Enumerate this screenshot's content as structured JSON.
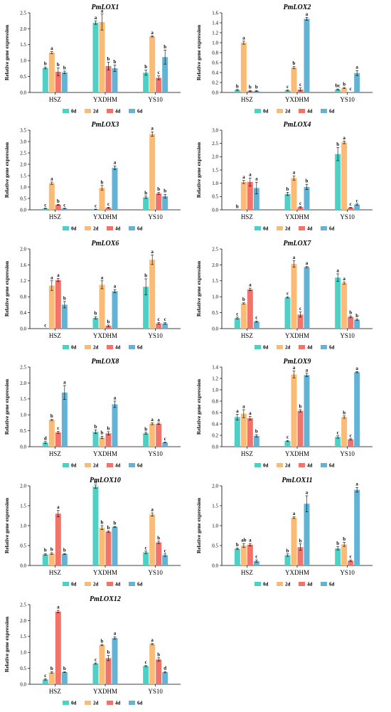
{
  "colors": {
    "0d": "#4fd0c6",
    "2d": "#f9bb76",
    "4d": "#f2736a",
    "6d": "#63b3d6"
  },
  "chart_data": [
    {
      "type": "bar",
      "title": "PmLOX1",
      "ylabel": "Relative gene expression",
      "ylim": [
        0,
        2.5
      ],
      "yticks": [
        0,
        0.5,
        1,
        1.5,
        2,
        2.5
      ],
      "categories": [
        "HSZ",
        "YXDHM",
        "YS10"
      ],
      "series": [
        {
          "name": "0d",
          "values": [
            0.77,
            2.19,
            0.62
          ],
          "errors": [
            0.03,
            0.05,
            0.08
          ],
          "letters": [
            "b",
            "a",
            "b"
          ]
        },
        {
          "name": "2d",
          "values": [
            1.25,
            2.21,
            1.76
          ],
          "errors": [
            0.03,
            0.25,
            0.02
          ],
          "letters": [
            "a",
            "a",
            "a"
          ]
        },
        {
          "name": "4d",
          "values": [
            0.65,
            0.83,
            0.46
          ],
          "errors": [
            0.12,
            0.12,
            0.06
          ],
          "letters": [
            "b",
            "b",
            "c"
          ]
        },
        {
          "name": "6d",
          "values": [
            0.63,
            0.76,
            1.11
          ],
          "errors": [
            0.04,
            0.1,
            0.22
          ],
          "letters": [
            "b",
            "b",
            "b"
          ]
        }
      ]
    },
    {
      "type": "bar",
      "title": "PmLOX2",
      "ylabel": "Relative gene expression",
      "ylim": [
        0,
        1.6
      ],
      "yticks": [
        0,
        0.2,
        0.4,
        0.6,
        0.8,
        1,
        1.2,
        1.4,
        1.6
      ],
      "categories": [
        "HSZ",
        "YXDHM",
        "YS10"
      ],
      "series": [
        {
          "name": "0d",
          "values": [
            0.05,
            0.04,
            0.06
          ],
          "errors": [
            0.01,
            0.01,
            0.01
          ],
          "letters": [
            "b",
            "c",
            "bc"
          ]
        },
        {
          "name": "2d",
          "values": [
            1.0,
            0.5,
            0.09
          ],
          "errors": [
            0.03,
            0.02,
            0.01
          ],
          "letters": [
            "a",
            "b",
            "b"
          ]
        },
        {
          "name": "4d",
          "values": [
            0.03,
            0.06,
            0.01
          ],
          "errors": [
            0.01,
            0.03,
            0.0
          ],
          "letters": [
            "b",
            "c",
            "c"
          ]
        },
        {
          "name": "6d",
          "values": [
            0.03,
            1.48,
            0.39
          ],
          "errors": [
            0.01,
            0.03,
            0.05
          ],
          "letters": [
            "b",
            "a",
            "a"
          ]
        }
      ]
    },
    {
      "type": "bar",
      "title": "PmLOX3",
      "ylabel": "Relative gene expression",
      "ylim": [
        0,
        3.5
      ],
      "yticks": [
        0,
        0.5,
        1,
        1.5,
        2,
        2.5,
        3,
        3.5
      ],
      "categories": [
        "HSZ",
        "YXDHM",
        "YS10"
      ],
      "series": [
        {
          "name": "0d",
          "values": [
            0.06,
            0.02,
            0.55
          ],
          "errors": [
            0.01,
            0.01,
            0.05
          ],
          "letters": [
            "c",
            "c",
            "b"
          ]
        },
        {
          "name": "2d",
          "values": [
            1.17,
            0.97,
            3.33
          ],
          "errors": [
            0.05,
            0.1,
            0.1
          ],
          "letters": [
            "a",
            "b",
            "a"
          ]
        },
        {
          "name": "4d",
          "values": [
            0.22,
            0.09,
            0.72
          ],
          "errors": [
            0.02,
            0.02,
            0.04
          ],
          "letters": [
            "b",
            "c",
            "b"
          ]
        },
        {
          "name": "6d",
          "values": [
            0.06,
            1.85,
            0.6
          ],
          "errors": [
            0.01,
            0.08,
            0.08
          ],
          "letters": [
            "c",
            "a",
            "b"
          ]
        }
      ]
    },
    {
      "type": "bar",
      "title": "PmLOX4",
      "ylabel": "Relative gene expression",
      "ylim": [
        0,
        3.0
      ],
      "yticks": [
        0,
        0.5,
        1,
        1.5,
        2,
        2.5,
        3
      ],
      "categories": [
        "HSZ",
        "YXDHM",
        "YS10"
      ],
      "series": [
        {
          "name": "0d",
          "values": [
            0.0,
            0.6,
            2.1
          ],
          "errors": [
            0.0,
            0.06,
            0.25
          ],
          "letters": [
            "b",
            "b",
            "b"
          ]
        },
        {
          "name": "2d",
          "values": [
            1.05,
            1.2,
            2.54
          ],
          "errors": [
            0.06,
            0.08,
            0.05
          ],
          "letters": [
            "a",
            "a",
            "a"
          ]
        },
        {
          "name": "4d",
          "values": [
            1.05,
            0.1,
            0.08
          ],
          "errors": [
            0.15,
            0.02,
            0.01
          ],
          "letters": [
            "a",
            "c",
            "c"
          ]
        },
        {
          "name": "6d",
          "values": [
            0.82,
            0.86,
            0.2
          ],
          "errors": [
            0.22,
            0.1,
            0.02
          ],
          "letters": [
            "a",
            "b",
            "c"
          ]
        }
      ]
    },
    {
      "type": "bar",
      "title": "PmLOX6",
      "ylabel": "Relative gene expression",
      "ylim": [
        0,
        2.0
      ],
      "yticks": [
        0,
        0.4,
        0.8,
        1.2,
        1.6,
        2
      ],
      "categories": [
        "HSZ",
        "YXDHM",
        "YS10"
      ],
      "series": [
        {
          "name": "0d",
          "values": [
            0.0,
            0.27,
            1.05
          ],
          "errors": [
            0.0,
            0.03,
            0.2
          ],
          "letters": [
            "c",
            "b",
            "b"
          ]
        },
        {
          "name": "2d",
          "values": [
            1.08,
            1.1,
            1.73
          ],
          "errors": [
            0.12,
            0.1,
            0.12
          ],
          "letters": [
            "a",
            "a",
            "a"
          ]
        },
        {
          "name": "4d",
          "values": [
            1.22,
            0.07,
            0.13
          ],
          "errors": [
            0.04,
            0.02,
            0.02
          ],
          "letters": [
            "a",
            "b",
            "c"
          ]
        },
        {
          "name": "6d",
          "values": [
            0.6,
            0.94,
            0.13
          ],
          "errors": [
            0.08,
            0.04,
            0.02
          ],
          "letters": [
            "b",
            "a",
            "c"
          ]
        }
      ]
    },
    {
      "type": "bar",
      "title": "PmLOX7",
      "ylabel": "Relative gene expression",
      "ylim": [
        0,
        2.5
      ],
      "yticks": [
        0,
        0.5,
        1,
        1.5,
        2,
        2.5
      ],
      "categories": [
        "HSZ",
        "YXDHM",
        "YS10"
      ],
      "series": [
        {
          "name": "0d",
          "values": [
            0.33,
            0.98,
            1.6
          ],
          "errors": [
            0.03,
            0.02,
            0.12
          ],
          "letters": [
            "c",
            "c",
            "a"
          ]
        },
        {
          "name": "2d",
          "values": [
            0.79,
            2.03,
            1.43
          ],
          "errors": [
            0.02,
            0.1,
            0.03
          ],
          "letters": [
            "b",
            "a",
            "a"
          ]
        },
        {
          "name": "4d",
          "values": [
            1.23,
            0.44,
            0.37
          ],
          "errors": [
            0.04,
            0.08,
            0.03
          ],
          "letters": [
            "a",
            "c",
            "b"
          ]
        },
        {
          "name": "6d",
          "values": [
            0.22,
            1.93,
            0.28
          ],
          "errors": [
            0.02,
            0.02,
            0.02
          ],
          "letters": [
            "c",
            "a",
            "b"
          ]
        }
      ]
    },
    {
      "type": "bar",
      "title": "PmLOX8",
      "ylabel": "Relative gene expression",
      "ylim": [
        0,
        2.5
      ],
      "yticks": [
        0,
        0.5,
        1,
        1.5,
        2,
        2.5
      ],
      "categories": [
        "HSZ",
        "YXDHM",
        "YS10"
      ],
      "series": [
        {
          "name": "0d",
          "values": [
            0.13,
            0.47,
            0.42
          ],
          "errors": [
            0.03,
            0.06,
            0.03
          ],
          "letters": [
            "d",
            "b",
            "b"
          ]
        },
        {
          "name": "2d",
          "values": [
            0.84,
            0.29,
            0.72
          ],
          "errors": [
            0.02,
            0.04,
            0.03
          ],
          "letters": [
            "b",
            "b",
            "a"
          ]
        },
        {
          "name": "4d",
          "values": [
            0.45,
            0.42,
            0.72
          ],
          "errors": [
            0.03,
            0.05,
            0.02
          ],
          "letters": [
            "c",
            "b",
            "a"
          ]
        },
        {
          "name": "6d",
          "values": [
            1.7,
            1.33,
            0.13
          ],
          "errors": [
            0.22,
            0.1,
            0.01
          ],
          "letters": [
            "a",
            "a",
            "c"
          ]
        }
      ]
    },
    {
      "type": "bar",
      "title": "PmLOX9",
      "ylabel": "Relative gene expression",
      "ylim": [
        0,
        1.4
      ],
      "yticks": [
        0,
        0.2,
        0.4,
        0.6,
        0.8,
        1,
        1.2,
        1.4
      ],
      "categories": [
        "HSZ",
        "YXDHM",
        "YS10"
      ],
      "series": [
        {
          "name": "0d",
          "values": [
            0.52,
            0.1,
            0.17
          ],
          "errors": [
            0.05,
            0.01,
            0.02
          ],
          "letters": [
            "a",
            "c",
            "c"
          ]
        },
        {
          "name": "2d",
          "values": [
            0.58,
            1.27,
            0.52
          ],
          "errors": [
            0.07,
            0.06,
            0.02
          ],
          "letters": [
            "a",
            "a",
            "b"
          ]
        },
        {
          "name": "4d",
          "values": [
            0.5,
            0.63,
            0.13
          ],
          "errors": [
            0.03,
            0.02,
            0.01
          ],
          "letters": [
            "a",
            "b",
            "c"
          ]
        },
        {
          "name": "6d",
          "values": [
            0.19,
            1.26,
            1.31
          ],
          "errors": [
            0.02,
            0.03,
            0.01
          ],
          "letters": [
            "b",
            "a",
            "a"
          ]
        }
      ]
    },
    {
      "type": "bar",
      "title": "PmLOX10",
      "ylabel": "Relative gene expression",
      "ylim": [
        0,
        2.0
      ],
      "yticks": [
        0,
        0.5,
        1,
        1.5,
        2
      ],
      "categories": [
        "HSZ",
        "YXDHM",
        "YS10"
      ],
      "series": [
        {
          "name": "0d",
          "values": [
            0.28,
            1.98,
            0.33
          ],
          "errors": [
            0.02,
            0.04,
            0.03
          ],
          "letters": [
            "b",
            "a",
            "c"
          ]
        },
        {
          "name": "2d",
          "values": [
            0.3,
            0.95,
            1.28
          ],
          "errors": [
            0.02,
            0.05,
            0.04
          ],
          "letters": [
            "b",
            "b",
            "a"
          ]
        },
        {
          "name": "4d",
          "values": [
            1.3,
            0.85,
            0.58
          ],
          "errors": [
            0.08,
            0.02,
            0.03
          ],
          "letters": [
            "a",
            "b",
            "b"
          ]
        },
        {
          "name": "6d",
          "values": [
            0.29,
            0.97,
            0.26
          ],
          "errors": [
            0.01,
            0.01,
            0.03
          ],
          "letters": [
            "b",
            "b",
            "c"
          ]
        }
      ]
    },
    {
      "type": "bar",
      "title": "PmLOX11",
      "ylabel": "Relative gene expression",
      "ylim": [
        0,
        2.0
      ],
      "yticks": [
        0,
        0.5,
        1,
        1.5,
        2
      ],
      "categories": [
        "HSZ",
        "YXDHM",
        "YS10"
      ],
      "series": [
        {
          "name": "0d",
          "values": [
            0.42,
            0.26,
            0.43
          ],
          "errors": [
            0.02,
            0.03,
            0.04
          ],
          "letters": [
            "b",
            "b",
            "b"
          ]
        },
        {
          "name": "2d",
          "values": [
            0.5,
            1.2,
            0.53
          ],
          "errors": [
            0.05,
            0.02,
            0.05
          ],
          "letters": [
            "ab",
            "a",
            "b"
          ]
        },
        {
          "name": "4d",
          "values": [
            0.52,
            0.46,
            0.12
          ],
          "errors": [
            0.03,
            0.08,
            0.02
          ],
          "letters": [
            "a",
            "b",
            "c"
          ]
        },
        {
          "name": "6d",
          "values": [
            0.11,
            1.55,
            1.9
          ],
          "errors": [
            0.03,
            0.2,
            0.06
          ],
          "letters": [
            "c",
            "a",
            "a"
          ]
        }
      ]
    },
    {
      "type": "bar",
      "title": "PmLOX12",
      "ylabel": "Relative gene expression",
      "ylim": [
        0,
        2.5
      ],
      "yticks": [
        0,
        0.5,
        1,
        1.5,
        2,
        2.5
      ],
      "categories": [
        "HSZ",
        "YXDHM",
        "YS10"
      ],
      "series": [
        {
          "name": "0d",
          "values": [
            0.15,
            0.65,
            0.57
          ],
          "errors": [
            0.02,
            0.02,
            0.02
          ],
          "letters": [
            "c",
            "c",
            "c"
          ]
        },
        {
          "name": "2d",
          "values": [
            0.37,
            1.23,
            1.26
          ],
          "errors": [
            0.02,
            0.02,
            0.02
          ],
          "letters": [
            "b",
            "b",
            "a"
          ]
        },
        {
          "name": "4d",
          "values": [
            2.28,
            0.82,
            0.78
          ],
          "errors": [
            0.04,
            0.08,
            0.05
          ],
          "letters": [
            "a",
            "b",
            "b"
          ]
        },
        {
          "name": "6d",
          "values": [
            0.38,
            1.45,
            0.38
          ],
          "errors": [
            0.01,
            0.04,
            0.02
          ],
          "letters": [
            "b",
            "a",
            "d"
          ]
        }
      ]
    }
  ]
}
